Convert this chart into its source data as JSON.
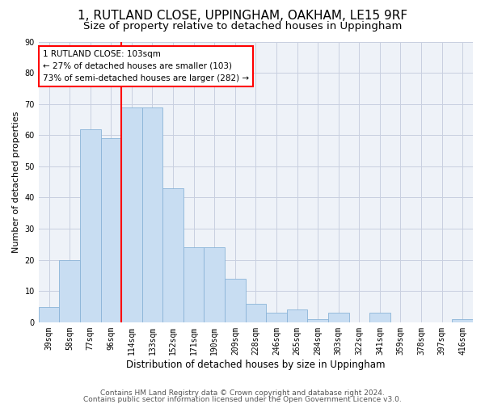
{
  "title": "1, RUTLAND CLOSE, UPPINGHAM, OAKHAM, LE15 9RF",
  "subtitle": "Size of property relative to detached houses in Uppingham",
  "xlabel": "Distribution of detached houses by size in Uppingham",
  "ylabel": "Number of detached properties",
  "categories": [
    "39sqm",
    "58sqm",
    "77sqm",
    "96sqm",
    "114sqm",
    "133sqm",
    "152sqm",
    "171sqm",
    "190sqm",
    "209sqm",
    "228sqm",
    "246sqm",
    "265sqm",
    "284sqm",
    "303sqm",
    "322sqm",
    "341sqm",
    "359sqm",
    "378sqm",
    "397sqm",
    "416sqm"
  ],
  "values": [
    5,
    20,
    62,
    59,
    69,
    69,
    43,
    24,
    24,
    14,
    6,
    3,
    4,
    1,
    3,
    0,
    3,
    0,
    0,
    0,
    1
  ],
  "bar_color": "#c8ddf2",
  "bar_edge_color": "#8ab4d8",
  "vline_index": 3,
  "vline_color": "red",
  "annotation_line1": "1 RUTLAND CLOSE: 103sqm",
  "annotation_line2": "← 27% of detached houses are smaller (103)",
  "annotation_line3": "73% of semi-detached houses are larger (282) →",
  "annotation_box_color": "white",
  "annotation_box_edge": "red",
  "ylim": [
    0,
    90
  ],
  "yticks": [
    0,
    10,
    20,
    30,
    40,
    50,
    60,
    70,
    80,
    90
  ],
  "footer1": "Contains HM Land Registry data © Crown copyright and database right 2024.",
  "footer2": "Contains public sector information licensed under the Open Government Licence v3.0.",
  "bg_color": "#eef2f8",
  "grid_color": "#c8cfe0",
  "title_fontsize": 11,
  "subtitle_fontsize": 9.5,
  "xlabel_fontsize": 8.5,
  "ylabel_fontsize": 8,
  "tick_fontsize": 7,
  "footer_fontsize": 6.5,
  "annotation_fontsize": 7.5
}
